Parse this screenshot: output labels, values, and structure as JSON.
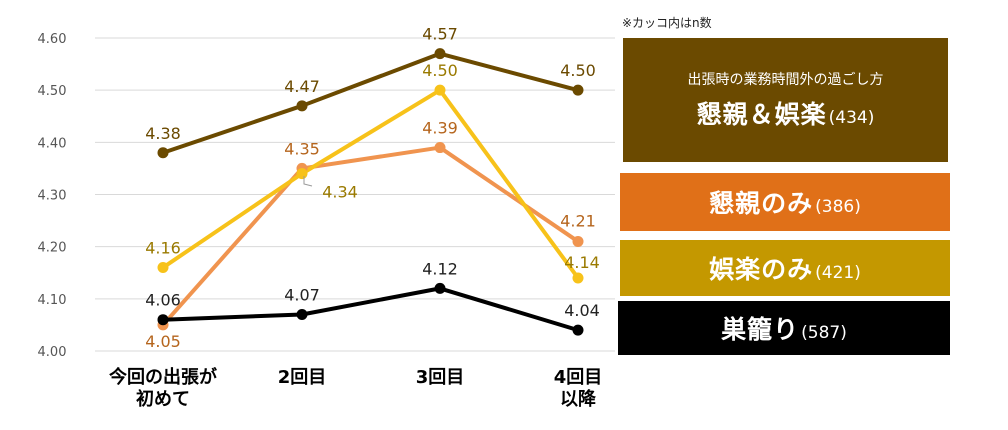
{
  "note": "※カッコ内はn数",
  "chart_data": {
    "type": "line",
    "categories": [
      "今回の出張が\n初めて",
      "2回目",
      "3回目",
      "4回目\n以降"
    ],
    "ylim": [
      4.0,
      4.6
    ],
    "yticks": [
      "4.00",
      "4.10",
      "4.20",
      "4.30",
      "4.40",
      "4.50",
      "4.60"
    ],
    "legend_title": "出張時の業務時間外の過ごし方",
    "series": [
      {
        "name": "懇親＆娯楽",
        "n": "(434)",
        "color": "#6b4a00",
        "values": [
          4.38,
          4.47,
          4.57,
          4.5
        ],
        "labels": [
          "4.38",
          "4.47",
          "4.57",
          "4.50"
        ]
      },
      {
        "name": "懇親のみ",
        "n": "(386)",
        "color": "#f0944f",
        "values": [
          4.05,
          4.35,
          4.39,
          4.21
        ],
        "labels": [
          "4.05",
          "4.35",
          "4.39",
          "4.21"
        ]
      },
      {
        "name": "娯楽のみ",
        "n": "(421)",
        "color": "#f7c21a",
        "values": [
          4.16,
          4.34,
          4.5,
          4.14
        ],
        "labels": [
          "4.16",
          "4.34",
          "4.50",
          "4.14"
        ]
      },
      {
        "name": "巣籠り",
        "n": "(587)",
        "color": "#000000",
        "values": [
          4.06,
          4.07,
          4.12,
          4.04
        ],
        "labels": [
          "4.06",
          "4.07",
          "4.12",
          "4.04"
        ]
      }
    ]
  },
  "legend": {
    "title": "出張時の業務時間外の過ごし方",
    "items": [
      {
        "name": "懇親＆娯楽",
        "n": "(434)",
        "bg": "#6b4a00"
      },
      {
        "name": "懇親のみ",
        "n": "(386)",
        "bg": "#e07018"
      },
      {
        "name": "娯楽のみ",
        "n": "(421)",
        "bg": "#c49800"
      },
      {
        "name": "巣籠り",
        "n": "(587)",
        "bg": "#000000"
      }
    ]
  },
  "colors": {
    "label_brown": "#6b4a00",
    "label_orange": "#b5651d",
    "label_gold": "#9a7a00",
    "label_black": "#222222"
  }
}
